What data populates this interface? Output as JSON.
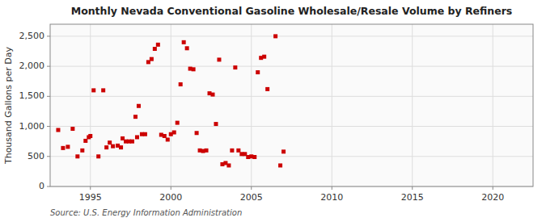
{
  "chart_data": {
    "type": "scatter",
    "title": "Monthly Nevada Conventional Gasoline Wholesale/Resale Volume by Refiners",
    "y_label": "Thousand Gallons per Day",
    "annotations": [
      "Source: U.S. Energy Information Administration"
    ],
    "color": "#cc0000",
    "marker": "square",
    "grid": true,
    "xlim": [
      1992.5,
      2022.5
    ],
    "ylim": [
      0,
      2700
    ],
    "xticks": [
      1995,
      2000,
      2005,
      2010,
      2015,
      2020
    ],
    "yticks": [
      0,
      500,
      {
        "value": 1000,
        "label": "1,000"
      },
      {
        "value": 1500,
        "label": "1,500"
      },
      {
        "value": 2000,
        "label": "2,000"
      },
      {
        "value": 2500,
        "label": "2,500"
      }
    ],
    "x": [
      1993.0,
      1993.3,
      1993.6,
      1993.9,
      1994.2,
      1994.5,
      1994.7,
      1994.9,
      1995.0,
      1995.2,
      1995.5,
      1995.8,
      1996.0,
      1996.2,
      1996.4,
      1996.7,
      1996.9,
      1997.0,
      1997.2,
      1997.4,
      1997.6,
      1997.8,
      1997.9,
      1998.0,
      1998.2,
      1998.4,
      1998.6,
      1998.8,
      1999.0,
      1999.2,
      1999.4,
      1999.6,
      1999.8,
      2000.0,
      2000.2,
      2000.4,
      2000.6,
      2000.8,
      2001.0,
      2001.2,
      2001.4,
      2001.6,
      2001.8,
      2002.0,
      2002.2,
      2002.4,
      2002.6,
      2002.8,
      2003.0,
      2003.2,
      2003.4,
      2003.6,
      2003.8,
      2004.0,
      2004.2,
      2004.4,
      2004.6,
      2004.8,
      2005.0,
      2005.2,
      2005.4,
      2005.6,
      2005.8,
      2006.0,
      2006.5,
      2006.8,
      2007.0
    ],
    "y": [
      940,
      640,
      660,
      960,
      500,
      600,
      760,
      820,
      840,
      1600,
      500,
      1600,
      650,
      730,
      670,
      680,
      650,
      800,
      750,
      750,
      750,
      1160,
      820,
      1340,
      870,
      870,
      2070,
      2120,
      2290,
      2360,
      860,
      840,
      780,
      870,
      900,
      1060,
      1700,
      2400,
      2300,
      1960,
      1950,
      890,
      600,
      590,
      600,
      1550,
      1530,
      1040,
      2110,
      370,
      390,
      350,
      600,
      1980,
      600,
      540,
      540,
      490,
      500,
      490,
      1900,
      2140,
      2160,
      1620,
      2500,
      350,
      580
    ]
  }
}
